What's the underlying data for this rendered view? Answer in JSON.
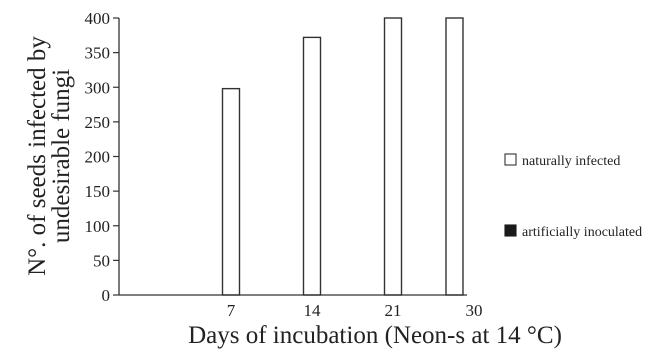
{
  "chart_data": {
    "type": "bar",
    "categories": [
      "7",
      "14",
      "21",
      "30"
    ],
    "series": [
      {
        "name": "naturally infected",
        "values": [
          298,
          372,
          400,
          400
        ],
        "fill": "#ffffff",
        "stroke": "#333333"
      },
      {
        "name": "artificially inoculated",
        "values": [
          0,
          0,
          0,
          0
        ],
        "fill": "#1a1a1a",
        "stroke": "#1a1a1a"
      }
    ],
    "xlabel": "Days of incubation (Neon-s at 14 °C)",
    "ylabel_lines": [
      "N°. of seeds infected by",
      "undesirable fungi"
    ],
    "ylim": [
      0,
      400
    ],
    "yticks": [
      0,
      50,
      100,
      150,
      200,
      250,
      300,
      350,
      400
    ],
    "grid": false,
    "legend_position": "right"
  }
}
